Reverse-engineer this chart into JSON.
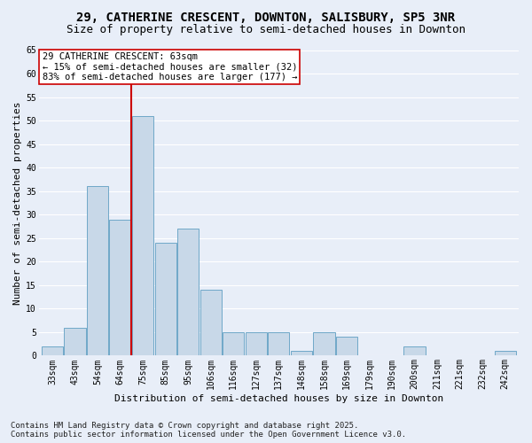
{
  "title1": "29, CATHERINE CRESCENT, DOWNTON, SALISBURY, SP5 3NR",
  "title2": "Size of property relative to semi-detached houses in Downton",
  "xlabel": "Distribution of semi-detached houses by size in Downton",
  "ylabel": "Number of semi-detached properties",
  "categories": [
    "33sqm",
    "43sqm",
    "54sqm",
    "64sqm",
    "75sqm",
    "85sqm",
    "95sqm",
    "106sqm",
    "116sqm",
    "127sqm",
    "137sqm",
    "148sqm",
    "158sqm",
    "169sqm",
    "179sqm",
    "190sqm",
    "200sqm",
    "211sqm",
    "221sqm",
    "232sqm",
    "242sqm"
  ],
  "values": [
    2,
    6,
    36,
    29,
    51,
    24,
    27,
    14,
    5,
    5,
    5,
    1,
    5,
    4,
    0,
    0,
    2,
    0,
    0,
    0,
    1
  ],
  "bar_color": "#c8d8e8",
  "bar_edge_color": "#6fa8c8",
  "background_color": "#e8eef8",
  "grid_color": "#ffffff",
  "property_line_x": 3.5,
  "property_label": "29 CATHERINE CRESCENT: 63sqm",
  "pct_smaller": "15% of semi-detached houses are smaller (32)",
  "pct_larger": "83% of semi-detached houses are larger (177)",
  "annotation_box_color": "#ffffff",
  "annotation_border_color": "#cc0000",
  "red_line_color": "#cc0000",
  "ylim": [
    0,
    65
  ],
  "yticks": [
    0,
    5,
    10,
    15,
    20,
    25,
    30,
    35,
    40,
    45,
    50,
    55,
    60,
    65
  ],
  "footer1": "Contains HM Land Registry data © Crown copyright and database right 2025.",
  "footer2": "Contains public sector information licensed under the Open Government Licence v3.0.",
  "title1_fontsize": 10,
  "title2_fontsize": 9,
  "tick_fontsize": 7,
  "label_fontsize": 8,
  "footer_fontsize": 6.5,
  "annot_fontsize": 7.5
}
